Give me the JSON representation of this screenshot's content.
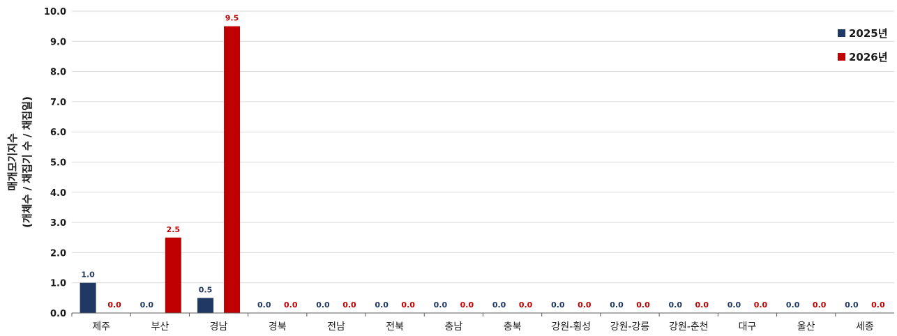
{
  "chart_data": {
    "type": "bar",
    "title": "",
    "ylabel_line1": "매개모기지수",
    "ylabel_line2": "(개체수 / 채집기 수 / 채집일)",
    "xlabel": "",
    "ylim": [
      0,
      10
    ],
    "ytick_step": 1,
    "categories": [
      "제주",
      "부산",
      "경남",
      "경북",
      "전남",
      "전북",
      "충남",
      "충북",
      "강원-횡성",
      "강원-강릉",
      "강원-춘천",
      "대구",
      "울산",
      "세종"
    ],
    "series": [
      {
        "name": "2025년",
        "color": "#1f3864",
        "values": [
          1.0,
          0.0,
          0.5,
          0.0,
          0.0,
          0.0,
          0.0,
          0.0,
          0.0,
          0.0,
          0.0,
          0.0,
          0.0,
          0.0
        ]
      },
      {
        "name": "2026년",
        "color": "#c00000",
        "values": [
          0.0,
          2.5,
          9.5,
          0.0,
          0.0,
          0.0,
          0.0,
          0.0,
          0.0,
          0.0,
          0.0,
          0.0,
          0.0,
          0.0
        ]
      }
    ],
    "legend_position": "top-right",
    "grid": true
  }
}
